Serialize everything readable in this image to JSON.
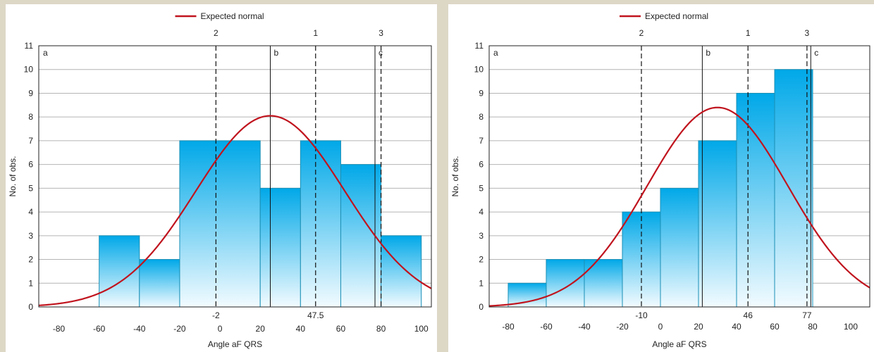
{
  "chart_data": [
    {
      "type": "bar",
      "legend": "Expected normal",
      "xlabel": "Angle aF QRS",
      "ylabel": "No. of obs.",
      "xlim": [
        -90,
        105
      ],
      "ylim": [
        0,
        11
      ],
      "xticks": [
        "-80",
        "-60",
        "-40",
        "-20",
        "0",
        "20",
        "40",
        "60",
        "80",
        "100"
      ],
      "yticks": [
        "0",
        "1",
        "2",
        "3",
        "4",
        "5",
        "6",
        "7",
        "8",
        "9",
        "10",
        "11"
      ],
      "bins": [
        {
          "from": -60,
          "to": -40,
          "count": 3
        },
        {
          "from": -40,
          "to": -20,
          "count": 2
        },
        {
          "from": -20,
          "to": 20,
          "count": 7
        },
        {
          "from": 20,
          "to": 40,
          "count": 5
        },
        {
          "from": 40,
          "to": 60,
          "count": 7
        },
        {
          "from": 60,
          "to": 80,
          "count": 6
        },
        {
          "from": 80,
          "to": 100,
          "count": 3
        }
      ],
      "normal": {
        "mean": 25,
        "sd": 37,
        "peak": 8.05
      },
      "dashed_lines": [
        {
          "x": -2,
          "top_label": "2",
          "bottom_label": "-2"
        },
        {
          "x": 47.5,
          "top_label": "1",
          "bottom_label": "47.5"
        },
        {
          "x": 80,
          "top_label": "3",
          "bottom_label": ""
        }
      ],
      "solid_lines": [
        {
          "x": 25,
          "label": "b"
        },
        {
          "x": 77,
          "label": "c"
        }
      ],
      "corner_label": "a"
    },
    {
      "type": "bar",
      "legend": "Expected  normal",
      "xlabel": "Angle aF QRS",
      "ylabel": "No. of obs.",
      "xlim": [
        -90,
        110
      ],
      "ylim": [
        0,
        11
      ],
      "xticks": [
        "-80",
        "-60",
        "-40",
        "-20",
        "0",
        "20",
        "40",
        "60",
        "80",
        "100"
      ],
      "yticks": [
        "0",
        "1",
        "2",
        "3",
        "4",
        "5",
        "6",
        "7",
        "8",
        "9",
        "10",
        "11"
      ],
      "bins": [
        {
          "from": -80,
          "to": -60,
          "count": 1
        },
        {
          "from": -60,
          "to": -40,
          "count": 2
        },
        {
          "from": -40,
          "to": -20,
          "count": 2
        },
        {
          "from": -20,
          "to": 0,
          "count": 4
        },
        {
          "from": 0,
          "to": 20,
          "count": 5
        },
        {
          "from": 20,
          "to": 40,
          "count": 7
        },
        {
          "from": 40,
          "to": 60,
          "count": 9
        },
        {
          "from": 60,
          "to": 80,
          "count": 10
        }
      ],
      "normal": {
        "mean": 30,
        "sd": 37,
        "peak": 8.4
      },
      "dashed_lines": [
        {
          "x": -10,
          "top_label": "2",
          "bottom_label": "-10"
        },
        {
          "x": 46,
          "top_label": "1",
          "bottom_label": "46"
        },
        {
          "x": 77,
          "top_label": "3",
          "bottom_label": "77"
        }
      ],
      "solid_lines": [
        {
          "x": 22,
          "label": "b"
        },
        {
          "x": 79,
          "label": "c"
        }
      ],
      "corner_label": "a"
    }
  ],
  "colors": {
    "bar_top": "#00a8e8",
    "bar_bottom": "#f2fbff",
    "bar_stroke": "#1a8fb5",
    "curve": "#c0141e",
    "grid": "#b4b4b4",
    "panel": "#ffffff",
    "background": "#ddd7c6"
  }
}
